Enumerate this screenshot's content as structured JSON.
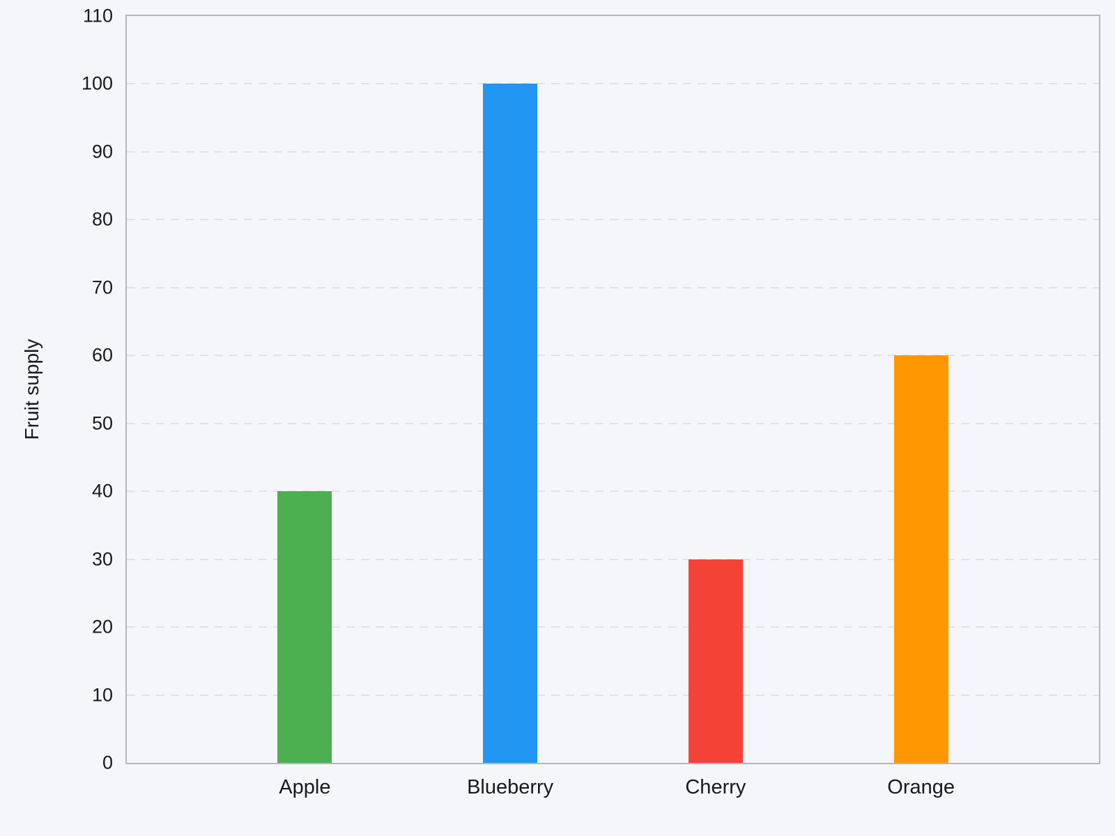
{
  "page": {
    "background_color": "#f5f6fa",
    "text_color": "#191920",
    "axis_color": "#b6b6ba",
    "gridline_color": "#e2e2e6"
  },
  "chart_data": {
    "type": "bar",
    "title": "",
    "xlabel": "",
    "ylabel": "Fruit supply",
    "categories": [
      "Apple",
      "Blueberry",
      "Cherry",
      "Orange"
    ],
    "values": [
      40,
      100,
      30,
      60
    ],
    "colors": [
      "#4caf50",
      "#2196f3",
      "#f44336",
      "#ff9800"
    ],
    "ylim": [
      0,
      110
    ],
    "yticks": [
      0,
      10,
      20,
      30,
      40,
      50,
      60,
      70,
      80,
      90,
      100,
      110
    ],
    "grid": "horizontal-dashed",
    "legend": "none"
  }
}
